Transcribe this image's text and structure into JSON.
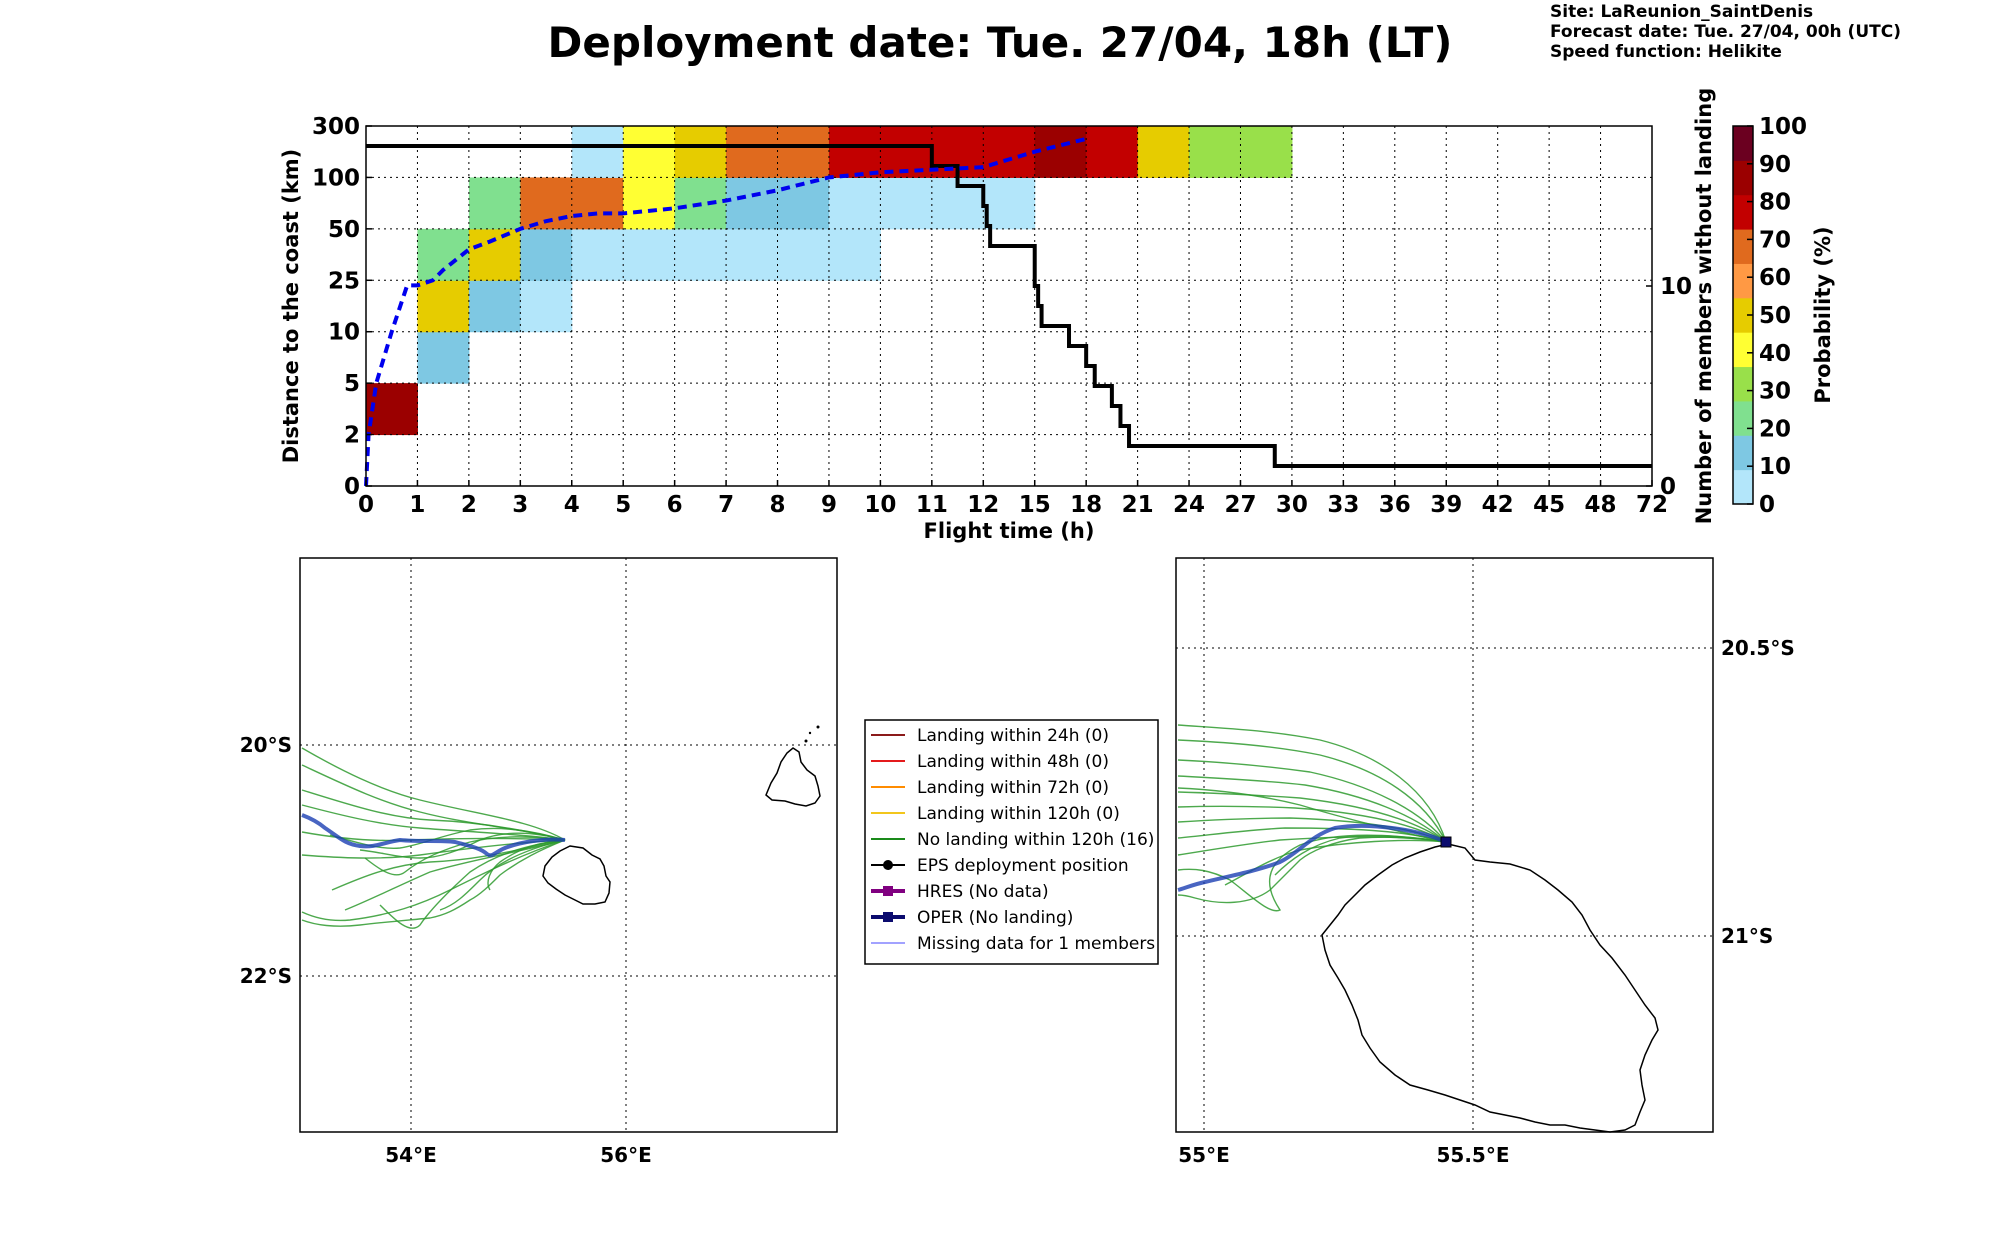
{
  "title": "Deployment date: Tue. 27/04, 18h (LT)",
  "info": {
    "site": "Site: LaReunion_SaintDenis",
    "forecast": "Forecast date: Tue. 27/04, 00h (UTC)",
    "speed": "Speed function: Helikite"
  },
  "chart_data": [
    {
      "type": "heatmap",
      "xlabel": "Flight time (h)",
      "ylabel": "Distance to the coast (km)",
      "y2label": "Number of members without landing",
      "colorbar_label": "Probability (%)",
      "x_ticks": [
        "0",
        "1",
        "2",
        "3",
        "4",
        "5",
        "6",
        "7",
        "8",
        "9",
        "10",
        "11",
        "12",
        "15",
        "18",
        "21",
        "24",
        "27",
        "30",
        "33",
        "36",
        "39",
        "42",
        "45",
        "48",
        "72"
      ],
      "y_ticks": [
        "0",
        "2",
        "5",
        "10",
        "25",
        "50",
        "100",
        "300"
      ],
      "y2_ticks": [
        "0",
        "10"
      ],
      "y2lim": [
        0,
        18
      ],
      "colorbar_ticks": [
        "0",
        "10",
        "20",
        "30",
        "40",
        "50",
        "60",
        "70",
        "80",
        "90",
        "100"
      ],
      "colorbar_colors": [
        "#b3e6fa",
        "#7ec8e3",
        "#80e08f",
        "#99e04a",
        "#ffff33",
        "#e6cc00",
        "#ff9944",
        "#e06a1e",
        "#c20000",
        "#9b0000",
        "#6b0020"
      ],
      "grid": true,
      "cells": [
        {
          "x": 0,
          "y": 1,
          "value": 95
        },
        {
          "x": 1,
          "y": 2,
          "value": 10
        },
        {
          "x": 1,
          "y": 3,
          "value": 50
        },
        {
          "x": 1,
          "y": 4,
          "value": 20
        },
        {
          "x": 2,
          "y": 3,
          "value": 10
        },
        {
          "x": 2,
          "y": 4,
          "value": 50
        },
        {
          "x": 2,
          "y": 5,
          "value": 20
        },
        {
          "x": 3,
          "y": 3,
          "value": 5
        },
        {
          "x": 3,
          "y": 4,
          "value": 10
        },
        {
          "x": 3,
          "y": 5,
          "value": 75
        },
        {
          "x": 4,
          "y": 4,
          "value": 5
        },
        {
          "x": 4,
          "y": 5,
          "value": 75
        },
        {
          "x": 4,
          "y": 6,
          "value": 5
        },
        {
          "x": 5,
          "y": 4,
          "value": 5
        },
        {
          "x": 5,
          "y": 5,
          "value": 45
        },
        {
          "x": 5,
          "y": 6,
          "value": 45
        },
        {
          "x": 6,
          "y": 4,
          "value": 5
        },
        {
          "x": 6,
          "y": 5,
          "value": 20
        },
        {
          "x": 6,
          "y": 6,
          "value": 55
        },
        {
          "x": 7,
          "y": 4,
          "value": 5
        },
        {
          "x": 7,
          "y": 5,
          "value": 10
        },
        {
          "x": 7,
          "y": 6,
          "value": 75
        },
        {
          "x": 8,
          "y": 4,
          "value": 5
        },
        {
          "x": 8,
          "y": 5,
          "value": 10
        },
        {
          "x": 8,
          "y": 6,
          "value": 75
        },
        {
          "x": 9,
          "y": 4,
          "value": 5
        },
        {
          "x": 9,
          "y": 5,
          "value": 5
        },
        {
          "x": 9,
          "y": 6,
          "value": 85
        },
        {
          "x": 10,
          "y": 5,
          "value": 5
        },
        {
          "x": 10,
          "y": 6,
          "value": 85
        },
        {
          "x": 11,
          "y": 5,
          "value": 5
        },
        {
          "x": 11,
          "y": 6,
          "value": 85
        },
        {
          "x": 12,
          "y": 5,
          "value": 5
        },
        {
          "x": 12,
          "y": 6,
          "value": 85
        },
        {
          "x": 13,
          "y": 6,
          "value": 95
        },
        {
          "x": 14,
          "y": 6,
          "value": 85
        },
        {
          "x": 15,
          "y": 6,
          "value": 55
        },
        {
          "x": 16,
          "y": 6,
          "value": 35
        },
        {
          "x": 17,
          "y": 6,
          "value": 35
        }
      ],
      "series": [
        {
          "name": "members_without_landing",
          "style": "black-step",
          "x": [
            0,
            10.2,
            11,
            11.5,
            12,
            12.2,
            12.4,
            15,
            15.2,
            15.4,
            17,
            18,
            18.5,
            19.5,
            20,
            20.5,
            21.5,
            29,
            72
          ],
          "y": [
            17,
            17,
            16,
            15,
            14,
            13,
            12,
            10,
            9,
            8,
            7,
            6,
            5,
            4,
            3,
            2,
            2,
            1,
            1
          ]
        },
        {
          "name": "median_distance",
          "style": "blue-dashed",
          "x": [
            0,
            0.05,
            0.2,
            0.5,
            0.8,
            1,
            1.3,
            1.5,
            2,
            2.4,
            3,
            3.5,
            4,
            4.5,
            5,
            6,
            7,
            8,
            9,
            10,
            12,
            15,
            18
          ],
          "y": [
            0,
            1,
            2,
            3,
            3.9,
            3.9,
            4,
            4.2,
            4.6,
            4.75,
            5.0,
            5.15,
            5.25,
            5.3,
            5.3,
            5.4,
            5.55,
            5.75,
            6.0,
            6.1,
            6.2,
            6.5,
            6.75
          ]
        }
      ]
    },
    {
      "type": "map",
      "name": "left-map",
      "x_ticks": [
        "54°E",
        "56°E"
      ],
      "y_ticks": [
        "20°S",
        "22°S"
      ],
      "lon_range": [
        53,
        58
      ],
      "lat_range": [
        -23.5,
        -18.5
      ]
    },
    {
      "type": "map",
      "name": "right-map",
      "x_ticks": [
        "55°E",
        "55.5°E"
      ],
      "y_ticks": [
        "20.5°S",
        "21°S"
      ],
      "lon_range": [
        54.95,
        55.95
      ],
      "lat_range": [
        -21.35,
        -20.35
      ]
    }
  ],
  "legend": {
    "items": [
      {
        "label": "Landing within 24h (0)",
        "color": "#8b1a1a",
        "marker": "none",
        "width": 2
      },
      {
        "label": "Landing within 48h (0)",
        "color": "#e41a1c",
        "marker": "none",
        "width": 2
      },
      {
        "label": "Landing within 72h (0)",
        "color": "#ff8c00",
        "marker": "none",
        "width": 2
      },
      {
        "label": "Landing within 120h (0)",
        "color": "#f2c61c",
        "marker": "none",
        "width": 2
      },
      {
        "label": "No landing within 120h (16)",
        "color": "#1a8a1a",
        "marker": "none",
        "width": 2
      },
      {
        "label": "EPS deployment position",
        "color": "#000000",
        "marker": "circle",
        "width": 2
      },
      {
        "label": "HRES (No data)",
        "color": "#800080",
        "marker": "square",
        "width": 4
      },
      {
        "label": "OPER (No landing)",
        "color": "#0b0b6e",
        "marker": "square",
        "width": 4
      },
      {
        "label": "Missing data for 1 members",
        "color": "#4444ff",
        "marker": "none",
        "width": 1
      }
    ]
  }
}
